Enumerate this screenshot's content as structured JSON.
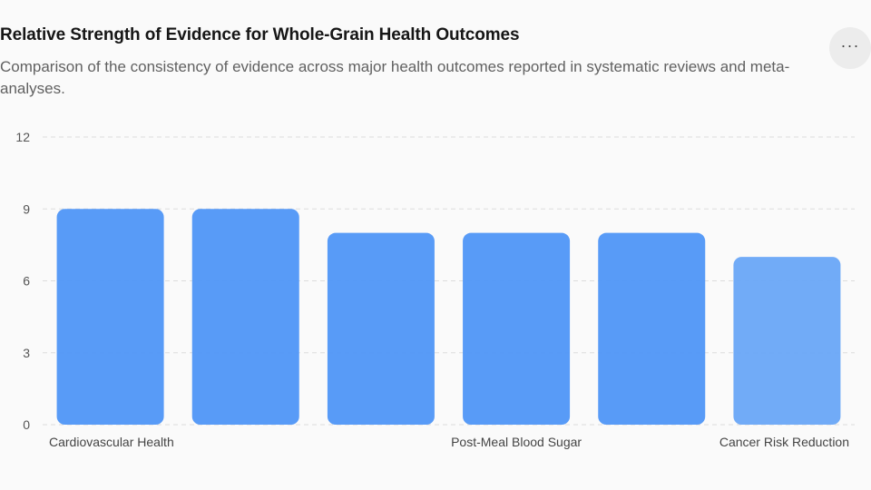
{
  "header": {
    "title": "Relative Strength of Evidence for Whole-Grain Health Outcomes",
    "subtitle": "Comparison of the consistency of evidence across major health outcomes reported in systematic reviews and meta-analyses."
  },
  "menu": {
    "icon": "more-horizontal-icon",
    "label": "···"
  },
  "colors": {
    "bar": "#4f96f7",
    "bar_light": "#69a6f7",
    "grid": "#dcdcdc"
  },
  "chart_data": {
    "type": "bar",
    "categories": [
      "Cardiovascular Health",
      "",
      "",
      "Post-Meal Blood Sugar",
      "",
      "Cancer Risk Reduction"
    ],
    "values": [
      9,
      9,
      8,
      8,
      8,
      7
    ],
    "ylim": [
      0,
      12
    ],
    "yticks": [
      0,
      3,
      6,
      9,
      12
    ],
    "xlabel": "",
    "ylabel": "",
    "grid": true,
    "legend": "none"
  }
}
